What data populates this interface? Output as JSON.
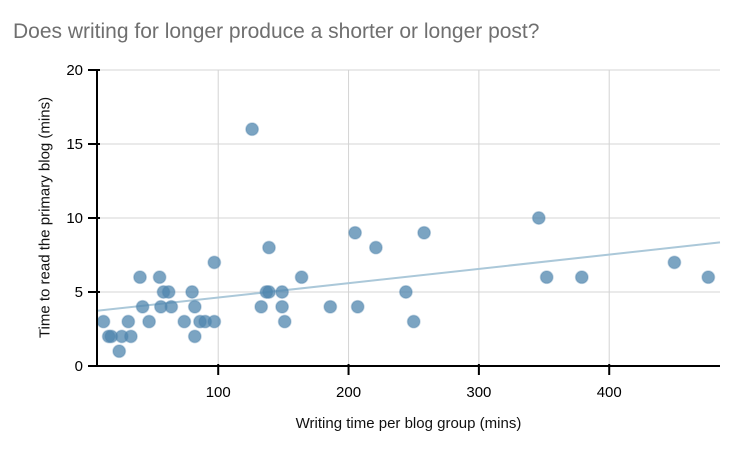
{
  "colors": {
    "title": "#6f6f6f",
    "marker": "#4f85ad",
    "trend": "#abc8d9",
    "grid": "#d4d4d4",
    "axis": "#000000",
    "tick_label": "#000000"
  },
  "chart_data": {
    "type": "scatter",
    "title": "Does writing for longer produce a shorter or longer post?",
    "xlabel": "Writing time per blog group (mins)",
    "ylabel": "Time to read the primary blog (mins)",
    "xlim": [
      7,
      485
    ],
    "ylim": [
      0,
      20
    ],
    "x_ticks": [
      100,
      200,
      300,
      400
    ],
    "y_ticks": [
      0,
      5,
      10,
      15,
      20
    ],
    "grid": true,
    "legend": "none",
    "points": [
      [
        12,
        3
      ],
      [
        16,
        2
      ],
      [
        18,
        2
      ],
      [
        24,
        1
      ],
      [
        26,
        2
      ],
      [
        31,
        3
      ],
      [
        33,
        2
      ],
      [
        40,
        6
      ],
      [
        42,
        4
      ],
      [
        47,
        3
      ],
      [
        55,
        6
      ],
      [
        56,
        4
      ],
      [
        58,
        5
      ],
      [
        62,
        5
      ],
      [
        64,
        4
      ],
      [
        74,
        3
      ],
      [
        80,
        5
      ],
      [
        82,
        2
      ],
      [
        82,
        4
      ],
      [
        86,
        3
      ],
      [
        90,
        3
      ],
      [
        97,
        3
      ],
      [
        97,
        7
      ],
      [
        126,
        16
      ],
      [
        133,
        4
      ],
      [
        137,
        5
      ],
      [
        139,
        5
      ],
      [
        139,
        8
      ],
      [
        149,
        4
      ],
      [
        149,
        5
      ],
      [
        151,
        3
      ],
      [
        164,
        6
      ],
      [
        186,
        4
      ],
      [
        205,
        9
      ],
      [
        207,
        4
      ],
      [
        221,
        8
      ],
      [
        244,
        5
      ],
      [
        250,
        3
      ],
      [
        258,
        9
      ],
      [
        346,
        10
      ],
      [
        352,
        6
      ],
      [
        379,
        6
      ],
      [
        450,
        7
      ],
      [
        476,
        6
      ]
    ],
    "trendline": {
      "x1": 7,
      "y1": 3.73,
      "x2": 485,
      "y2": 8.35
    }
  }
}
